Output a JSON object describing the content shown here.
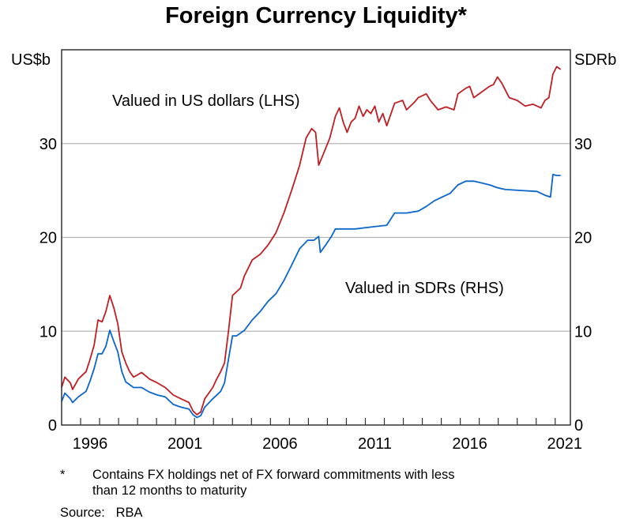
{
  "chart_data": {
    "type": "line",
    "title": "Foreign Currency Liquidity*",
    "ylabel_left": "US$b",
    "ylabel_right": "SDRb",
    "ylim": [
      0,
      40
    ],
    "xlim": [
      1995.0,
      2021.8
    ],
    "yticks": [
      0,
      10,
      20,
      30
    ],
    "xtick_labels": [
      "1996",
      "2001",
      "2006",
      "2011",
      "2016",
      "2021"
    ],
    "grid": true,
    "colors": {
      "usd": "#bf1e24",
      "sdr": "#0b66cc"
    },
    "series": [
      {
        "name": "Valued in US dollars (LHS)",
        "axis": "left",
        "points": [
          [
            1995.0,
            4.0
          ],
          [
            1995.17,
            5.1
          ],
          [
            1995.46,
            4.5
          ],
          [
            1995.58,
            3.8
          ],
          [
            1995.88,
            4.9
          ],
          [
            1996.29,
            5.7
          ],
          [
            1996.5,
            7.0
          ],
          [
            1996.71,
            8.5
          ],
          [
            1996.92,
            11.2
          ],
          [
            1997.13,
            11.0
          ],
          [
            1997.33,
            12.1
          ],
          [
            1997.54,
            13.8
          ],
          [
            1997.75,
            12.5
          ],
          [
            1997.96,
            10.8
          ],
          [
            1998.17,
            7.8
          ],
          [
            1998.38,
            6.6
          ],
          [
            1998.58,
            5.7
          ],
          [
            1998.79,
            5.1
          ],
          [
            1999.21,
            5.6
          ],
          [
            1999.63,
            4.9
          ],
          [
            2000.04,
            4.5
          ],
          [
            2000.46,
            4.0
          ],
          [
            2000.88,
            3.2
          ],
          [
            2001.29,
            2.8
          ],
          [
            2001.71,
            2.4
          ],
          [
            2001.92,
            1.5
          ],
          [
            2002.13,
            1.1
          ],
          [
            2002.33,
            1.4
          ],
          [
            2002.54,
            2.8
          ],
          [
            2002.96,
            4.0
          ],
          [
            2003.17,
            4.9
          ],
          [
            2003.38,
            5.7
          ],
          [
            2003.58,
            6.6
          ],
          [
            2003.79,
            10.0
          ],
          [
            2004.0,
            13.8
          ],
          [
            2004.21,
            14.2
          ],
          [
            2004.42,
            14.6
          ],
          [
            2004.63,
            15.9
          ],
          [
            2005.04,
            17.6
          ],
          [
            2005.46,
            18.2
          ],
          [
            2005.88,
            19.2
          ],
          [
            2006.29,
            20.5
          ],
          [
            2006.71,
            22.6
          ],
          [
            2007.13,
            25.1
          ],
          [
            2007.54,
            27.7
          ],
          [
            2007.88,
            30.6
          ],
          [
            2008.17,
            31.6
          ],
          [
            2008.38,
            31.2
          ],
          [
            2008.54,
            27.7
          ],
          [
            2008.79,
            28.9
          ],
          [
            2009.13,
            30.6
          ],
          [
            2009.42,
            32.9
          ],
          [
            2009.63,
            33.8
          ],
          [
            2009.83,
            32.3
          ],
          [
            2010.04,
            31.2
          ],
          [
            2010.25,
            32.3
          ],
          [
            2010.46,
            32.7
          ],
          [
            2010.67,
            34.0
          ],
          [
            2010.88,
            32.9
          ],
          [
            2011.08,
            33.6
          ],
          [
            2011.29,
            33.2
          ],
          [
            2011.5,
            34.0
          ],
          [
            2011.71,
            32.3
          ],
          [
            2011.92,
            33.2
          ],
          [
            2012.13,
            31.9
          ],
          [
            2012.54,
            34.3
          ],
          [
            2012.96,
            34.6
          ],
          [
            2013.17,
            33.6
          ],
          [
            2013.58,
            34.4
          ],
          [
            2013.79,
            34.9
          ],
          [
            2014.21,
            35.3
          ],
          [
            2014.42,
            34.6
          ],
          [
            2014.83,
            33.6
          ],
          [
            2015.25,
            33.9
          ],
          [
            2015.67,
            33.6
          ],
          [
            2015.88,
            35.3
          ],
          [
            2016.29,
            35.9
          ],
          [
            2016.5,
            36.1
          ],
          [
            2016.71,
            34.9
          ],
          [
            2017.13,
            35.5
          ],
          [
            2017.54,
            36.1
          ],
          [
            2017.75,
            36.3
          ],
          [
            2017.96,
            37.1
          ],
          [
            2018.17,
            36.5
          ],
          [
            2018.58,
            34.9
          ],
          [
            2019.0,
            34.6
          ],
          [
            2019.42,
            34.0
          ],
          [
            2019.83,
            34.2
          ],
          [
            2020.25,
            33.8
          ],
          [
            2020.46,
            34.6
          ],
          [
            2020.67,
            34.9
          ],
          [
            2020.88,
            37.4
          ],
          [
            2021.08,
            38.2
          ],
          [
            2021.29,
            37.9
          ]
        ]
      },
      {
        "name": "Valued in SDRs (RHS)",
        "axis": "right",
        "points": [
          [
            1995.0,
            2.5
          ],
          [
            1995.17,
            3.4
          ],
          [
            1995.46,
            2.8
          ],
          [
            1995.58,
            2.4
          ],
          [
            1995.88,
            3.0
          ],
          [
            1996.29,
            3.6
          ],
          [
            1996.5,
            4.7
          ],
          [
            1996.71,
            6.0
          ],
          [
            1996.92,
            7.6
          ],
          [
            1997.13,
            7.6
          ],
          [
            1997.33,
            8.4
          ],
          [
            1997.54,
            10.1
          ],
          [
            1997.75,
            8.9
          ],
          [
            1997.96,
            7.8
          ],
          [
            1998.17,
            5.7
          ],
          [
            1998.38,
            4.6
          ],
          [
            1998.79,
            4.0
          ],
          [
            1999.21,
            4.0
          ],
          [
            1999.63,
            3.5
          ],
          [
            2000.04,
            3.2
          ],
          [
            2000.46,
            3.0
          ],
          [
            2000.88,
            2.2
          ],
          [
            2001.29,
            1.9
          ],
          [
            2001.71,
            1.7
          ],
          [
            2001.92,
            1.1
          ],
          [
            2002.13,
            0.8
          ],
          [
            2002.33,
            1.0
          ],
          [
            2002.54,
            1.9
          ],
          [
            2002.96,
            2.8
          ],
          [
            2003.38,
            3.6
          ],
          [
            2003.58,
            4.5
          ],
          [
            2003.79,
            7.0
          ],
          [
            2004.0,
            9.5
          ],
          [
            2004.21,
            9.5
          ],
          [
            2004.63,
            10.1
          ],
          [
            2005.04,
            11.2
          ],
          [
            2005.46,
            12.1
          ],
          [
            2005.88,
            13.2
          ],
          [
            2006.29,
            14.0
          ],
          [
            2006.71,
            15.4
          ],
          [
            2007.13,
            17.1
          ],
          [
            2007.54,
            18.8
          ],
          [
            2007.96,
            19.7
          ],
          [
            2008.29,
            19.7
          ],
          [
            2008.54,
            20.1
          ],
          [
            2008.63,
            18.4
          ],
          [
            2008.88,
            19.1
          ],
          [
            2009.21,
            20.1
          ],
          [
            2009.42,
            20.9
          ],
          [
            2009.83,
            20.9
          ],
          [
            2010.46,
            20.9
          ],
          [
            2011.29,
            21.1
          ],
          [
            2012.13,
            21.3
          ],
          [
            2012.54,
            22.6
          ],
          [
            2013.17,
            22.6
          ],
          [
            2013.79,
            22.8
          ],
          [
            2014.21,
            23.3
          ],
          [
            2014.63,
            23.9
          ],
          [
            2015.04,
            24.3
          ],
          [
            2015.46,
            24.7
          ],
          [
            2015.88,
            25.6
          ],
          [
            2016.29,
            26.0
          ],
          [
            2016.71,
            26.0
          ],
          [
            2017.13,
            25.8
          ],
          [
            2017.54,
            25.6
          ],
          [
            2017.96,
            25.3
          ],
          [
            2018.38,
            25.1
          ],
          [
            2019.21,
            25.0
          ],
          [
            2020.04,
            24.9
          ],
          [
            2020.46,
            24.5
          ],
          [
            2020.75,
            24.3
          ],
          [
            2020.88,
            26.7
          ],
          [
            2021.08,
            26.6
          ],
          [
            2021.29,
            26.6
          ]
        ]
      }
    ]
  },
  "footnote": {
    "marker": "*",
    "line1": "Contains FX holdings net of FX forward commitments with less",
    "line2": "than 12 months to maturity"
  },
  "source": {
    "label": "Source:",
    "value": "RBA"
  }
}
